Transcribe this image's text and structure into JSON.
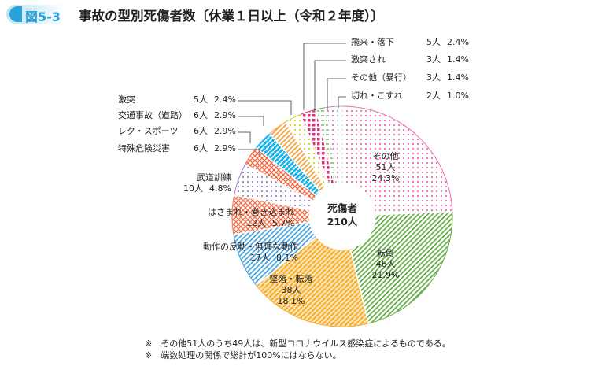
{
  "figure_number": "図5-3",
  "title": "事故の型別死傷者数〔休業１日以上（令和２年度）〕",
  "chart_data": {
    "type": "pie",
    "donut": true,
    "center_label": {
      "line1": "死傷者",
      "line2": "210人"
    },
    "unit": "人",
    "slices": [
      {
        "name": "その他",
        "value": 51,
        "percent": "24.3%",
        "color": "#ea6fae"
      },
      {
        "name": "転倒",
        "value": 46,
        "percent": "21.9%",
        "color": "#5aa83a"
      },
      {
        "name": "墜落・転落",
        "value": 38,
        "percent": "18.1%",
        "color": "#f5a81c"
      },
      {
        "name": "動作の反動・無理な動作",
        "value": 17,
        "percent": "8.1%",
        "color": "#3b9fe0"
      },
      {
        "name": "はさまれ・巻き込まれ",
        "value": 12,
        "percent": "5.7%",
        "color": "#f0704a"
      },
      {
        "name": "武道訓練",
        "value": 10,
        "percent": "4.8%",
        "color": "#9a80c8"
      },
      {
        "name": "特殊危険災害",
        "value": 6,
        "percent": "2.9%",
        "color": "#f0643c"
      },
      {
        "name": "レク・スポーツ",
        "value": 6,
        "percent": "2.9%",
        "color": "#1cb4ea"
      },
      {
        "name": "交通事故（道路）",
        "value": 6,
        "percent": "2.9%",
        "color": "#f59a2c"
      },
      {
        "name": "激突",
        "value": 5,
        "percent": "2.4%",
        "color": "#c8d428"
      },
      {
        "name": "飛来・落下",
        "value": 5,
        "percent": "2.4%",
        "color": "#e6287a"
      },
      {
        "name": "激突され",
        "value": 3,
        "percent": "1.4%",
        "color": "#5aa83a"
      },
      {
        "name": "その他（暴行）",
        "value": 3,
        "percent": "1.4%",
        "color": "#d77ab8"
      },
      {
        "name": "切れ・こすれ",
        "value": 2,
        "percent": "1.0%",
        "color": "#7cc8c8"
      }
    ]
  },
  "notes": [
    "※　その他51人のうち49人は、新型コロナウイルス感染症によるものである。",
    "※　端数処理の関係で総計が100%にはならない。"
  ]
}
